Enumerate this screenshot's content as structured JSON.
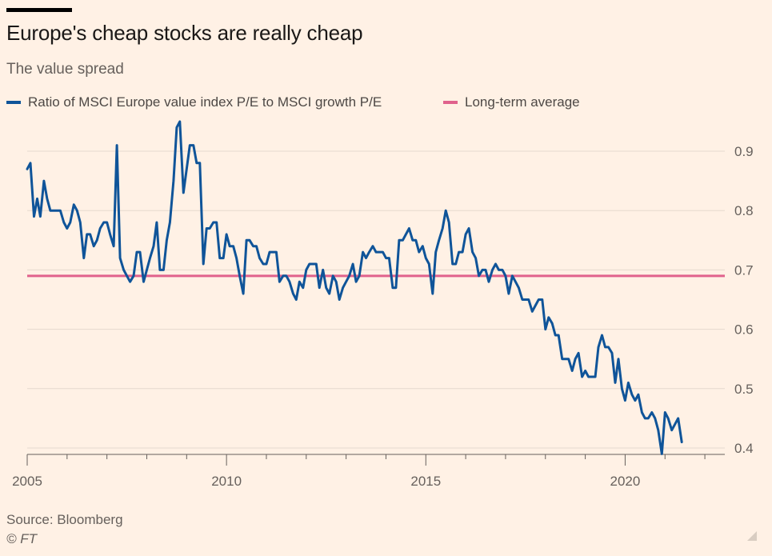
{
  "header": {
    "title": "Europe's cheap stocks are really cheap",
    "subtitle": "The value spread"
  },
  "legend": {
    "series_label": "Ratio of MSCI Europe value index P/E to MSCI growth P/E",
    "average_label": "Long-term average"
  },
  "footer": {
    "source": "Source: Bloomberg",
    "copyright": "© FT"
  },
  "colors": {
    "background": "#fff1e5",
    "series": "#0f5499",
    "average": "#e0628c",
    "grid": "#e6d9ce",
    "axis": "#66605c"
  },
  "chart_data": {
    "type": "line",
    "title": "Europe's cheap stocks are really cheap",
    "subtitle": "The value spread",
    "xlim": [
      2005,
      2022.5
    ],
    "ylim": [
      0.39,
      0.95
    ],
    "x_ticks": [
      2005,
      2010,
      2015,
      2020
    ],
    "y_ticks": [
      0.9,
      0.8,
      0.7,
      0.6,
      0.5,
      0.4
    ],
    "y_tick_labels": [
      "0.9",
      "0.8",
      "0.7",
      "0.6",
      "0.5",
      "0.4"
    ],
    "y_axis_side": "right",
    "grid": "horizontal",
    "legend_placement": "top-left",
    "series": [
      {
        "name": "Ratio of MSCI Europe value index P/E to MSCI growth P/E",
        "color": "#0f5499",
        "points": [
          [
            2005.0,
            0.87
          ],
          [
            2005.08,
            0.88
          ],
          [
            2005.17,
            0.79
          ],
          [
            2005.25,
            0.82
          ],
          [
            2005.33,
            0.79
          ],
          [
            2005.42,
            0.85
          ],
          [
            2005.5,
            0.82
          ],
          [
            2005.58,
            0.8
          ],
          [
            2005.67,
            0.8
          ],
          [
            2005.83,
            0.8
          ],
          [
            2005.92,
            0.78
          ],
          [
            2006.0,
            0.77
          ],
          [
            2006.08,
            0.78
          ],
          [
            2006.17,
            0.81
          ],
          [
            2006.25,
            0.8
          ],
          [
            2006.33,
            0.78
          ],
          [
            2006.42,
            0.72
          ],
          [
            2006.5,
            0.76
          ],
          [
            2006.58,
            0.76
          ],
          [
            2006.67,
            0.74
          ],
          [
            2006.75,
            0.75
          ],
          [
            2006.83,
            0.77
          ],
          [
            2006.92,
            0.78
          ],
          [
            2007.0,
            0.78
          ],
          [
            2007.08,
            0.76
          ],
          [
            2007.17,
            0.74
          ],
          [
            2007.25,
            0.91
          ],
          [
            2007.33,
            0.72
          ],
          [
            2007.42,
            0.7
          ],
          [
            2007.5,
            0.69
          ],
          [
            2007.58,
            0.68
          ],
          [
            2007.67,
            0.69
          ],
          [
            2007.75,
            0.73
          ],
          [
            2007.83,
            0.73
          ],
          [
            2007.92,
            0.68
          ],
          [
            2008.0,
            0.7
          ],
          [
            2008.08,
            0.72
          ],
          [
            2008.17,
            0.74
          ],
          [
            2008.25,
            0.78
          ],
          [
            2008.33,
            0.7
          ],
          [
            2008.42,
            0.7
          ],
          [
            2008.5,
            0.75
          ],
          [
            2008.58,
            0.78
          ],
          [
            2008.67,
            0.85
          ],
          [
            2008.75,
            0.94
          ],
          [
            2008.83,
            0.95
          ],
          [
            2008.92,
            0.83
          ],
          [
            2009.0,
            0.87
          ],
          [
            2009.08,
            0.91
          ],
          [
            2009.17,
            0.91
          ],
          [
            2009.25,
            0.88
          ],
          [
            2009.33,
            0.88
          ],
          [
            2009.42,
            0.71
          ],
          [
            2009.5,
            0.77
          ],
          [
            2009.58,
            0.77
          ],
          [
            2009.67,
            0.78
          ],
          [
            2009.75,
            0.78
          ],
          [
            2009.83,
            0.72
          ],
          [
            2009.92,
            0.72
          ],
          [
            2010.0,
            0.76
          ],
          [
            2010.08,
            0.74
          ],
          [
            2010.17,
            0.74
          ],
          [
            2010.25,
            0.72
          ],
          [
            2010.33,
            0.69
          ],
          [
            2010.42,
            0.66
          ],
          [
            2010.5,
            0.75
          ],
          [
            2010.58,
            0.75
          ],
          [
            2010.67,
            0.74
          ],
          [
            2010.75,
            0.74
          ],
          [
            2010.83,
            0.72
          ],
          [
            2010.92,
            0.71
          ],
          [
            2011.0,
            0.71
          ],
          [
            2011.08,
            0.73
          ],
          [
            2011.17,
            0.73
          ],
          [
            2011.25,
            0.73
          ],
          [
            2011.33,
            0.68
          ],
          [
            2011.42,
            0.69
          ],
          [
            2011.5,
            0.69
          ],
          [
            2011.58,
            0.68
          ],
          [
            2011.67,
            0.66
          ],
          [
            2011.75,
            0.65
          ],
          [
            2011.83,
            0.68
          ],
          [
            2011.92,
            0.67
          ],
          [
            2012.0,
            0.7
          ],
          [
            2012.08,
            0.71
          ],
          [
            2012.17,
            0.71
          ],
          [
            2012.25,
            0.71
          ],
          [
            2012.33,
            0.67
          ],
          [
            2012.42,
            0.7
          ],
          [
            2012.5,
            0.67
          ],
          [
            2012.58,
            0.66
          ],
          [
            2012.67,
            0.69
          ],
          [
            2012.75,
            0.68
          ],
          [
            2012.83,
            0.65
          ],
          [
            2012.92,
            0.67
          ],
          [
            2013.0,
            0.68
          ],
          [
            2013.08,
            0.69
          ],
          [
            2013.17,
            0.71
          ],
          [
            2013.25,
            0.68
          ],
          [
            2013.33,
            0.69
          ],
          [
            2013.42,
            0.73
          ],
          [
            2013.5,
            0.72
          ],
          [
            2013.58,
            0.73
          ],
          [
            2013.67,
            0.74
          ],
          [
            2013.75,
            0.73
          ],
          [
            2013.83,
            0.73
          ],
          [
            2013.92,
            0.73
          ],
          [
            2014.0,
            0.72
          ],
          [
            2014.08,
            0.72
          ],
          [
            2014.17,
            0.67
          ],
          [
            2014.25,
            0.67
          ],
          [
            2014.33,
            0.75
          ],
          [
            2014.42,
            0.75
          ],
          [
            2014.5,
            0.76
          ],
          [
            2014.58,
            0.77
          ],
          [
            2014.67,
            0.75
          ],
          [
            2014.75,
            0.75
          ],
          [
            2014.83,
            0.73
          ],
          [
            2014.92,
            0.74
          ],
          [
            2015.0,
            0.72
          ],
          [
            2015.08,
            0.71
          ],
          [
            2015.17,
            0.66
          ],
          [
            2015.25,
            0.73
          ],
          [
            2015.33,
            0.75
          ],
          [
            2015.42,
            0.77
          ],
          [
            2015.5,
            0.8
          ],
          [
            2015.58,
            0.78
          ],
          [
            2015.67,
            0.71
          ],
          [
            2015.75,
            0.71
          ],
          [
            2015.83,
            0.73
          ],
          [
            2015.92,
            0.73
          ],
          [
            2016.0,
            0.76
          ],
          [
            2016.08,
            0.77
          ],
          [
            2016.17,
            0.73
          ],
          [
            2016.25,
            0.72
          ],
          [
            2016.33,
            0.69
          ],
          [
            2016.42,
            0.7
          ],
          [
            2016.5,
            0.7
          ],
          [
            2016.58,
            0.68
          ],
          [
            2016.67,
            0.7
          ],
          [
            2016.75,
            0.71
          ],
          [
            2016.83,
            0.7
          ],
          [
            2016.92,
            0.7
          ],
          [
            2017.0,
            0.69
          ],
          [
            2017.08,
            0.66
          ],
          [
            2017.17,
            0.69
          ],
          [
            2017.25,
            0.68
          ],
          [
            2017.33,
            0.67
          ],
          [
            2017.42,
            0.65
          ],
          [
            2017.5,
            0.65
          ],
          [
            2017.58,
            0.65
          ],
          [
            2017.67,
            0.63
          ],
          [
            2017.75,
            0.64
          ],
          [
            2017.83,
            0.65
          ],
          [
            2017.92,
            0.65
          ],
          [
            2018.0,
            0.6
          ],
          [
            2018.08,
            0.62
          ],
          [
            2018.17,
            0.61
          ],
          [
            2018.25,
            0.59
          ],
          [
            2018.33,
            0.59
          ],
          [
            2018.42,
            0.55
          ],
          [
            2018.5,
            0.55
          ],
          [
            2018.58,
            0.55
          ],
          [
            2018.67,
            0.53
          ],
          [
            2018.75,
            0.55
          ],
          [
            2018.83,
            0.56
          ],
          [
            2018.92,
            0.52
          ],
          [
            2019.0,
            0.53
          ],
          [
            2019.08,
            0.52
          ],
          [
            2019.17,
            0.52
          ],
          [
            2019.25,
            0.52
          ],
          [
            2019.33,
            0.57
          ],
          [
            2019.42,
            0.59
          ],
          [
            2019.5,
            0.57
          ],
          [
            2019.58,
            0.57
          ],
          [
            2019.67,
            0.56
          ],
          [
            2019.75,
            0.51
          ],
          [
            2019.83,
            0.55
          ],
          [
            2019.92,
            0.5
          ],
          [
            2020.0,
            0.48
          ],
          [
            2020.08,
            0.51
          ],
          [
            2020.17,
            0.49
          ],
          [
            2020.25,
            0.48
          ],
          [
            2020.33,
            0.49
          ],
          [
            2020.42,
            0.46
          ],
          [
            2020.5,
            0.45
          ],
          [
            2020.58,
            0.45
          ],
          [
            2020.67,
            0.46
          ],
          [
            2020.75,
            0.45
          ],
          [
            2020.83,
            0.43
          ],
          [
            2020.92,
            0.39
          ],
          [
            2021.0,
            0.46
          ],
          [
            2021.08,
            0.45
          ],
          [
            2021.17,
            0.43
          ],
          [
            2021.25,
            0.44
          ],
          [
            2021.33,
            0.45
          ],
          [
            2021.42,
            0.41
          ]
        ]
      }
    ],
    "reference_lines": [
      {
        "name": "Long-term average",
        "y": 0.69,
        "color": "#e0628c"
      }
    ]
  }
}
